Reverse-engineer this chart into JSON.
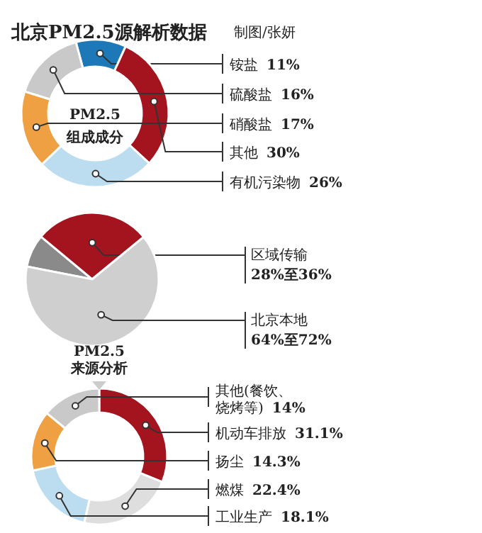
{
  "chart_data": [
    {
      "type": "donut",
      "title": "北京PM2.5源解析数据",
      "subtitle": "制图/张妍",
      "annotations": [
        "PM2.5\n组成成分"
      ],
      "categories": [
        "铵盐",
        "硫酸盐",
        "硝酸盐",
        "其他",
        "有机污染物"
      ],
      "values": [
        11,
        16,
        17,
        30,
        26
      ],
      "colors": [
        "#1c78b6",
        "#c9c9c9",
        "#eea043",
        "#a3141f",
        "#bcdcf0"
      ],
      "value_labels": [
        "11%",
        "16%",
        "17%",
        "30%",
        "26%"
      ]
    },
    {
      "type": "pie",
      "categories": [
        "区域传输",
        null,
        "北京本地"
      ],
      "values": [
        28,
        8,
        64
      ],
      "colors": [
        "#a3141f",
        "#8a8a8a",
        "#cfcfcf"
      ],
      "value_labels": [
        "28%至36%",
        null,
        "64%至72%"
      ]
    },
    {
      "type": "donut",
      "annotations": [
        "PM2.5\n来源分析"
      ],
      "categories": [
        "其他(餐饮、烧烤等)",
        "机动车排放",
        "扬尘",
        "燃煤",
        "工业生产"
      ],
      "values": [
        14,
        31.1,
        14.3,
        22.4,
        18.1
      ],
      "colors": [
        "#c9c9c9",
        "#a3141f",
        "#eea043",
        "#dedede",
        "#bcdcf0"
      ],
      "value_labels": [
        "14%",
        "31.1%",
        "14.3%",
        "22.4%",
        "18.1%"
      ]
    }
  ]
}
